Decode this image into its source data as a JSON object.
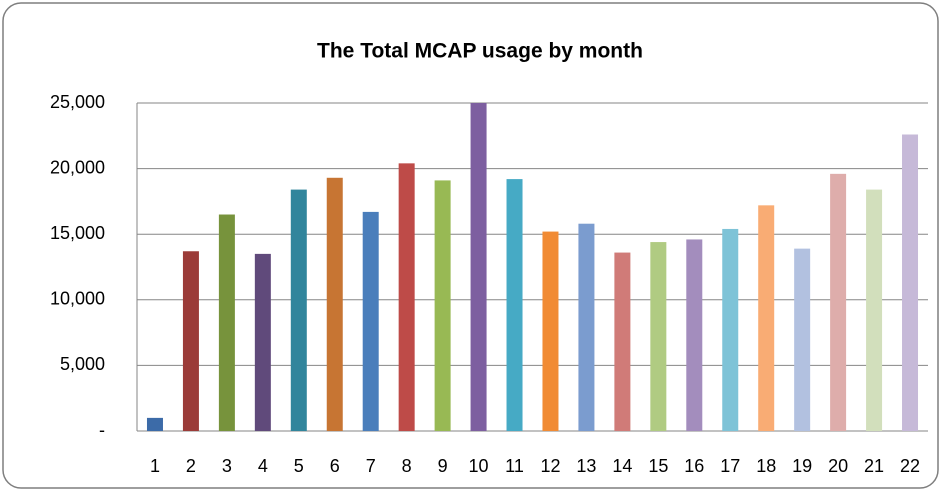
{
  "chart_data": {
    "type": "bar",
    "title": "The Total MCAP usage by month",
    "categories": [
      "1",
      "2",
      "3",
      "4",
      "5",
      "6",
      "7",
      "8",
      "9",
      "10",
      "11",
      "12",
      "13",
      "14",
      "15",
      "16",
      "17",
      "18",
      "19",
      "20",
      "21",
      "22"
    ],
    "values": [
      1000,
      13700,
      16500,
      13500,
      18400,
      19300,
      16700,
      20400,
      19100,
      25000,
      19200,
      15200,
      15800,
      13600,
      14400,
      14600,
      15400,
      17200,
      13900,
      19600,
      18400,
      22600
    ],
    "colors": [
      "#3c6ba8",
      "#9b3b38",
      "#77933c",
      "#604a7b",
      "#31859c",
      "#c77533",
      "#4a7ebb",
      "#be4b48",
      "#98b954",
      "#7d5fa0",
      "#46aac5",
      "#f18b34",
      "#7b9ccf",
      "#d07b78",
      "#b0cb82",
      "#a38dbd",
      "#7ec3d7",
      "#f9ac74",
      "#b2c1e0",
      "#deadab",
      "#d2dfbc",
      "#c6b9d8"
    ],
    "ylim": [
      0,
      25000
    ],
    "yticks": [
      {
        "value": 0,
        "label": "-"
      },
      {
        "value": 5000,
        "label": "5,000"
      },
      {
        "value": 10000,
        "label": "10,000"
      },
      {
        "value": 15000,
        "label": "15,000"
      },
      {
        "value": 20000,
        "label": "20,000"
      },
      {
        "value": 25000,
        "label": "25,000"
      }
    ],
    "grid": true
  }
}
